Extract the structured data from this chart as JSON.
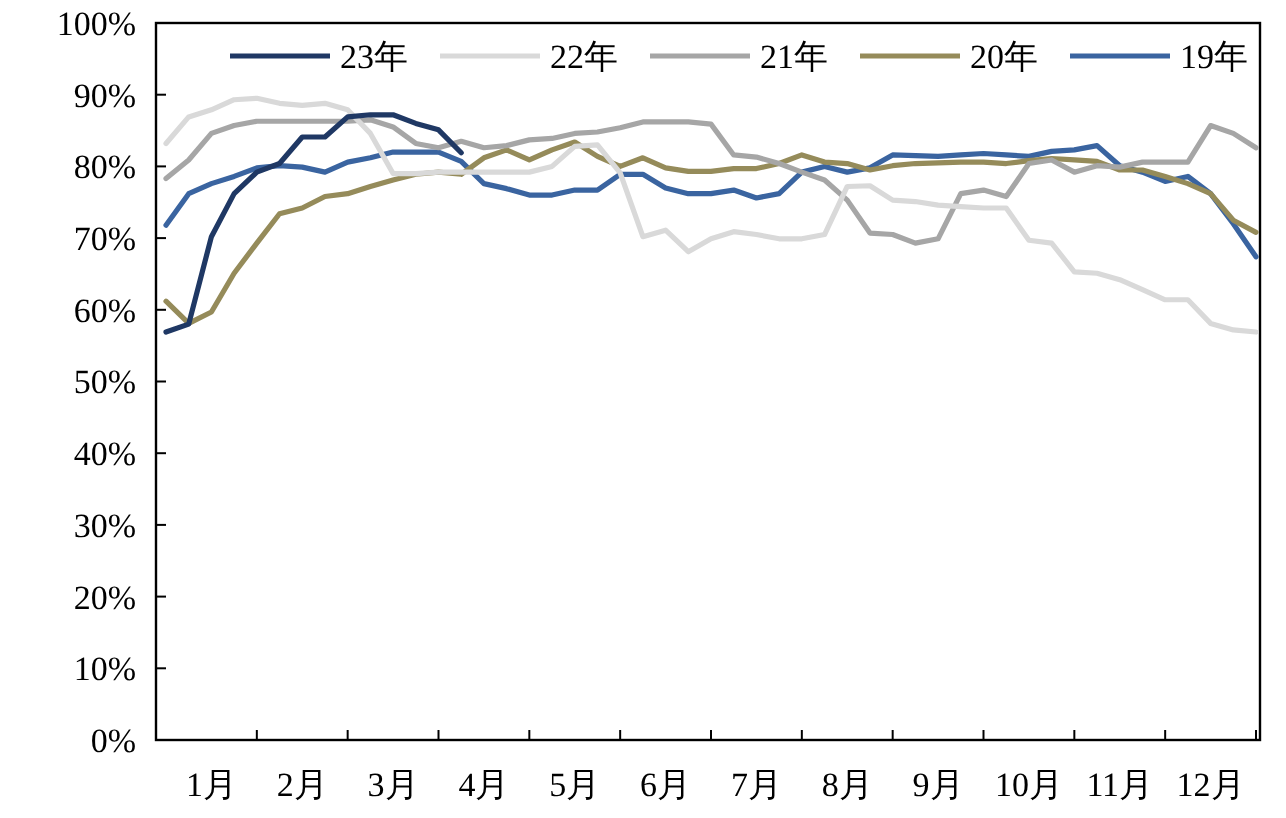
{
  "chart_data": {
    "type": "line",
    "legend": "top",
    "grid": false,
    "marker": "none",
    "line_style": "solid",
    "categories": [
      null,
      null,
      "1月",
      null,
      null,
      null,
      "2月",
      null,
      null,
      null,
      "3月",
      null,
      null,
      null,
      "4月",
      null,
      null,
      null,
      "5月",
      null,
      null,
      null,
      "6月",
      null,
      null,
      null,
      "7月",
      null,
      null,
      null,
      "8月",
      null,
      null,
      null,
      "9月",
      null,
      null,
      null,
      "10月",
      null,
      null,
      null,
      "11月",
      null,
      null,
      null,
      "12月",
      null,
      null
    ],
    "ylim": [
      0,
      100
    ],
    "yticks": [
      {
        "value": 0,
        "label": "0%"
      },
      {
        "value": 10,
        "label": "10%"
      },
      {
        "value": 20,
        "label": "20%"
      },
      {
        "value": 30,
        "label": "30%"
      },
      {
        "value": 40,
        "label": "40%"
      },
      {
        "value": 50,
        "label": "50%"
      },
      {
        "value": 60,
        "label": "60%"
      },
      {
        "value": 70,
        "label": "70%"
      },
      {
        "value": 80,
        "label": "80%"
      },
      {
        "value": 90,
        "label": "90%"
      },
      {
        "value": 100,
        "label": "100%"
      }
    ],
    "series": [
      {
        "name": "23年",
        "color": "#1f3864",
        "values": [
          56.9,
          58.0,
          70.2,
          76.2,
          79.2,
          80.4,
          84.1,
          84.1,
          86.9,
          87.2,
          87.2,
          86.0,
          85.1,
          81.9,
          null,
          null,
          null,
          null,
          null,
          null,
          null,
          null,
          null,
          null,
          null,
          null,
          null,
          null,
          null,
          null,
          null,
          null,
          null,
          null,
          null,
          null,
          null,
          null,
          null,
          null,
          null,
          null,
          null,
          null,
          null,
          null,
          null,
          null,
          null
        ]
      },
      {
        "name": "22年",
        "color": "#d9d9d9",
        "values": [
          83.2,
          86.9,
          87.9,
          89.3,
          89.5,
          88.8,
          88.5,
          88.8,
          87.9,
          84.6,
          79.0,
          79.0,
          79.2,
          79.2,
          79.2,
          79.2,
          79.2,
          80.0,
          82.8,
          83.0,
          79.1,
          70.2,
          71.1,
          68.1,
          69.9,
          70.9,
          70.5,
          69.9,
          69.9,
          70.5,
          77.2,
          77.3,
          75.3,
          75.1,
          74.6,
          74.4,
          74.2,
          74.2,
          69.7,
          69.3,
          65.3,
          65.1,
          64.2,
          62.8,
          61.4,
          61.4,
          58.1,
          57.2,
          56.9
        ]
      },
      {
        "name": "21年",
        "color": "#a6a6a6",
        "values": [
          78.3,
          80.9,
          84.6,
          85.7,
          86.3,
          86.3,
          86.3,
          86.3,
          86.3,
          86.5,
          85.5,
          83.2,
          82.6,
          83.5,
          82.6,
          82.9,
          83.7,
          83.9,
          84.6,
          84.8,
          85.4,
          86.2,
          86.2,
          86.2,
          85.9,
          81.6,
          81.3,
          80.4,
          79.2,
          78.1,
          75.3,
          70.7,
          70.5,
          69.3,
          69.9,
          76.2,
          76.7,
          75.8,
          80.4,
          80.9,
          79.2,
          80.1,
          79.9,
          80.6,
          80.6,
          80.6,
          85.7,
          84.6,
          82.6
        ]
      },
      {
        "name": "20年",
        "color": "#958b5a",
        "values": [
          61.2,
          58.1,
          59.7,
          65.1,
          69.3,
          73.4,
          74.2,
          75.8,
          76.2,
          77.2,
          78.1,
          78.9,
          79.2,
          78.9,
          81.2,
          82.3,
          80.9,
          82.3,
          83.4,
          81.4,
          80.0,
          81.2,
          79.8,
          79.3,
          79.3,
          79.7,
          79.7,
          80.4,
          81.6,
          80.6,
          80.4,
          79.5,
          80.1,
          80.4,
          80.5,
          80.6,
          80.6,
          80.4,
          80.8,
          81.1,
          80.9,
          80.7,
          79.5,
          79.5,
          78.6,
          77.6,
          76.2,
          72.5,
          70.8
        ]
      },
      {
        "name": "19年",
        "color": "#3a64a0",
        "values": [
          71.8,
          76.2,
          77.6,
          78.6,
          79.8,
          80.1,
          79.9,
          79.2,
          80.6,
          81.2,
          82.0,
          82.0,
          82.0,
          80.7,
          77.6,
          76.9,
          76.0,
          76.0,
          76.7,
          76.7,
          78.9,
          78.9,
          77.0,
          76.2,
          76.2,
          76.7,
          75.6,
          76.2,
          79.2,
          80.0,
          79.2,
          79.8,
          81.6,
          81.5,
          81.4,
          81.6,
          81.8,
          81.6,
          81.4,
          82.1,
          82.3,
          82.9,
          80.1,
          79.2,
          77.9,
          78.6,
          76.2,
          72.0,
          67.4
        ]
      }
    ]
  }
}
